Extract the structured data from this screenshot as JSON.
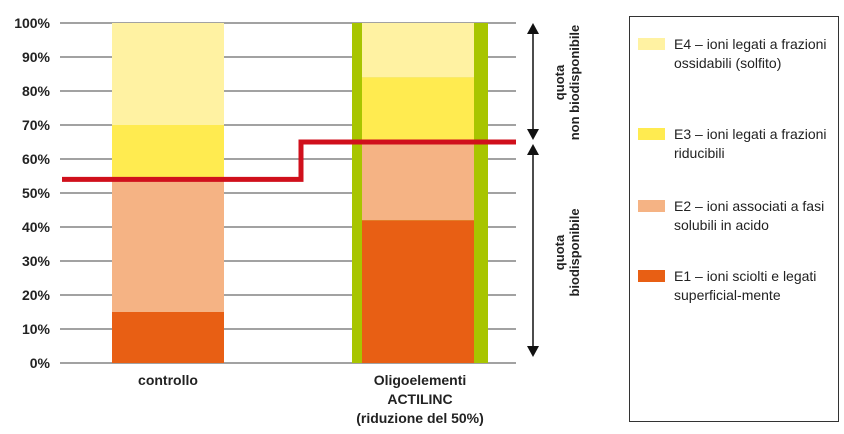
{
  "chart_data": {
    "type": "bar",
    "stacked": true,
    "categories": [
      "controllo",
      "Oligoelementi\nACTILINC\n(riduzione del 50%)"
    ],
    "series": [
      {
        "name": "E1 – ioni sciolti e legati superficial-mente",
        "color": "#E85F14",
        "values": [
          15,
          42
        ]
      },
      {
        "name": "E2 – ioni associati a fasi solubili in acido",
        "color": "#F5B384",
        "values": [
          39,
          23
        ]
      },
      {
        "name": "E3 – ioni legati a frazioni riducibili",
        "color": "#FFEB50",
        "values": [
          16,
          19
        ]
      },
      {
        "name": "E4 – ioni legati a frazioni ossidabili (solfito)",
        "color": "#FFF2A2",
        "values": [
          30,
          16
        ]
      }
    ],
    "yticks": [
      "0%",
      "10%",
      "20%",
      "30%",
      "40%",
      "50%",
      "60%",
      "70%",
      "80%",
      "90%",
      "100%"
    ],
    "ylim": [
      0,
      100
    ],
    "bioavailability_threshold": [
      54,
      65
    ],
    "highlight_color": "#A8C500",
    "threshold_color": "#D0101C",
    "annotations": {
      "upper": [
        "quota",
        "non biodisponibile"
      ],
      "lower": [
        "quota",
        "biodisponibile"
      ]
    },
    "legend_position": "right"
  }
}
